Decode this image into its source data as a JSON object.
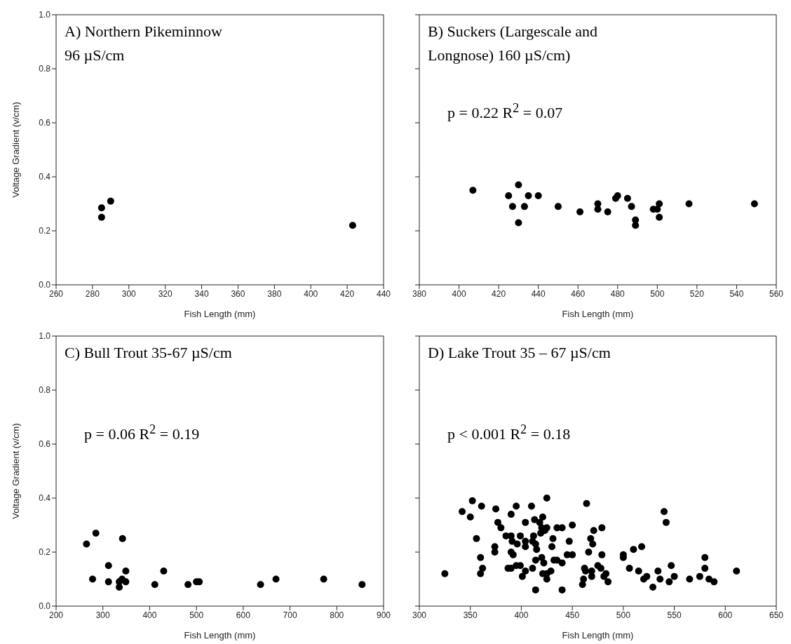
{
  "chart_data": [
    {
      "type": "scatter",
      "title": "A)  Northern Pikeminnow 96 µS/cm",
      "xlabel": "Fish Length (mm)",
      "ylabel": "Voltage Gradient (v/cm)",
      "marker": "circle",
      "color": "#000000",
      "x": [
        285,
        285,
        290,
        423
      ],
      "values": [
        0.285,
        0.25,
        0.31,
        0.22
      ],
      "xlim": [
        260,
        440
      ],
      "xticks": [
        260,
        280,
        300,
        320,
        340,
        360,
        380,
        400,
        420,
        440
      ],
      "ylim": [
        0,
        1
      ],
      "yticks": [
        {
          "value": 0,
          "label": "0.0"
        },
        {
          "value": 0.2,
          "label": "0.2"
        },
        {
          "value": 0.4,
          "label": "0.4"
        },
        {
          "value": 0.6,
          "label": "0.6"
        },
        {
          "value": 0.8,
          "label": "0.8"
        },
        {
          "value": 1,
          "label": "1.0"
        }
      ]
    },
    {
      "type": "scatter",
      "title": "B) Suckers (Largescale and Longnose) 160 µS/cm)",
      "xlabel": "Fish Length (mm)",
      "annotations": [
        "p = 0.22 R$^{2}$ = 0.07"
      ],
      "marker": "circle",
      "color": "#000000",
      "tick_labels": "x",
      "x": [
        407,
        425,
        430,
        427,
        433,
        435,
        440,
        430,
        450,
        461,
        470,
        470,
        475,
        479,
        480,
        485,
        487,
        489,
        489,
        498,
        500,
        501,
        501,
        516,
        549
      ],
      "values": [
        0.35,
        0.33,
        0.37,
        0.29,
        0.29,
        0.33,
        0.33,
        0.23,
        0.29,
        0.27,
        0.3,
        0.28,
        0.27,
        0.32,
        0.33,
        0.32,
        0.29,
        0.24,
        0.22,
        0.28,
        0.28,
        0.3,
        0.25,
        0.3,
        0.3
      ],
      "xlim": [
        380,
        560
      ],
      "xticks": [
        380,
        400,
        420,
        440,
        460,
        480,
        500,
        520,
        540,
        560
      ],
      "ylim": [
        0,
        1
      ],
      "yticks": [
        0,
        0.2,
        0.4,
        0.6,
        0.8,
        1
      ]
    },
    {
      "type": "scatter",
      "title": "C) Bull Trout 35-67 µS/cm",
      "xlabel": "Fish Length (mm)",
      "ylabel": "Voltage Gradient (v/cm)",
      "annotations": [
        "p = 0.06 R$^{2}$ = 0.19"
      ],
      "marker": "circle",
      "color": "#000000",
      "x": [
        265,
        285,
        278,
        312,
        312,
        342,
        349,
        335,
        341,
        335,
        349,
        411,
        430,
        482,
        500,
        506,
        637,
        670,
        772,
        854
      ],
      "values": [
        0.23,
        0.27,
        0.1,
        0.15,
        0.09,
        0.25,
        0.13,
        0.09,
        0.1,
        0.07,
        0.09,
        0.08,
        0.13,
        0.08,
        0.09,
        0.09,
        0.08,
        0.1,
        0.1,
        0.08
      ],
      "xlim": [
        200,
        900
      ],
      "xticks": [
        200,
        300,
        400,
        500,
        600,
        700,
        800,
        900
      ],
      "ylim": [
        0,
        1
      ],
      "yticks": [
        {
          "value": 0,
          "label": "0.0"
        },
        {
          "value": 0.2,
          "label": "0.2"
        },
        {
          "value": 0.4,
          "label": "0.4"
        },
        {
          "value": 0.6,
          "label": "0.6"
        },
        {
          "value": 0.8,
          "label": "0.8"
        },
        {
          "value": 1,
          "label": "1.0"
        }
      ]
    },
    {
      "type": "scatter",
      "title": "D) Lake Trout 35 – 67 µS/cm",
      "xlabel": "Fish Length (mm)",
      "annotations": [
        "p < 0.001 R$^{2}$ = 0.18"
      ],
      "marker": "circle",
      "color": "#000000",
      "tick_labels": "x",
      "x": [
        325,
        342,
        352,
        350,
        356,
        361,
        360,
        360,
        362,
        375,
        374,
        374,
        377,
        380,
        385,
        390,
        395,
        390,
        391,
        396,
        390,
        392,
        387,
        390,
        395,
        399,
        399,
        404,
        404,
        404,
        401,
        404,
        410,
        413,
        411,
        412,
        414,
        415,
        411,
        414,
        414,
        418,
        421,
        420,
        423,
        425,
        419,
        420,
        422,
        425,
        421,
        425,
        429,
        425,
        431,
        430,
        432,
        435,
        435,
        440,
        440,
        440,
        445,
        447,
        450,
        450,
        464,
        462,
        463,
        469,
        461,
        460,
        466,
        471,
        468,
        470,
        475,
        469,
        479,
        479,
        478,
        483,
        481,
        485,
        500,
        500,
        506,
        510,
        518,
        515,
        520,
        523,
        529,
        534,
        536,
        542,
        540,
        547,
        545,
        550,
        565,
        575,
        580,
        580,
        584,
        589,
        611
      ],
      "values": [
        0.12,
        0.35,
        0.39,
        0.33,
        0.25,
        0.37,
        0.18,
        0.12,
        0.14,
        0.36,
        0.22,
        0.2,
        0.31,
        0.29,
        0.26,
        0.34,
        0.37,
        0.26,
        0.24,
        0.23,
        0.2,
        0.19,
        0.14,
        0.14,
        0.15,
        0.15,
        0.26,
        0.24,
        0.22,
        0.31,
        0.11,
        0.13,
        0.37,
        0.32,
        0.24,
        0.26,
        0.23,
        0.21,
        0.14,
        0.17,
        0.06,
        0.31,
        0.33,
        0.29,
        0.28,
        0.29,
        0.27,
        0.18,
        0.16,
        0.4,
        0.12,
        0.12,
        0.13,
        0.1,
        0.25,
        0.22,
        0.17,
        0.17,
        0.29,
        0.29,
        0.06,
        0.16,
        0.19,
        0.24,
        0.3,
        0.19,
        0.38,
        0.14,
        0.13,
        0.13,
        0.1,
        0.08,
        0.2,
        0.28,
        0.25,
        0.23,
        0.15,
        0.11,
        0.29,
        0.19,
        0.14,
        0.12,
        0.11,
        0.09,
        0.18,
        0.19,
        0.14,
        0.21,
        0.22,
        0.13,
        0.1,
        0.11,
        0.07,
        0.13,
        0.1,
        0.31,
        0.35,
        0.15,
        0.09,
        0.11,
        0.1,
        0.11,
        0.18,
        0.14,
        0.1,
        0.09,
        0.13
      ],
      "xlim": [
        300,
        650
      ],
      "xticks": [
        300,
        350,
        400,
        450,
        500,
        550,
        600,
        650
      ],
      "ylim": [
        0,
        1
      ],
      "yticks": [
        0,
        0.2,
        0.4,
        0.6,
        0.8,
        1
      ]
    }
  ]
}
